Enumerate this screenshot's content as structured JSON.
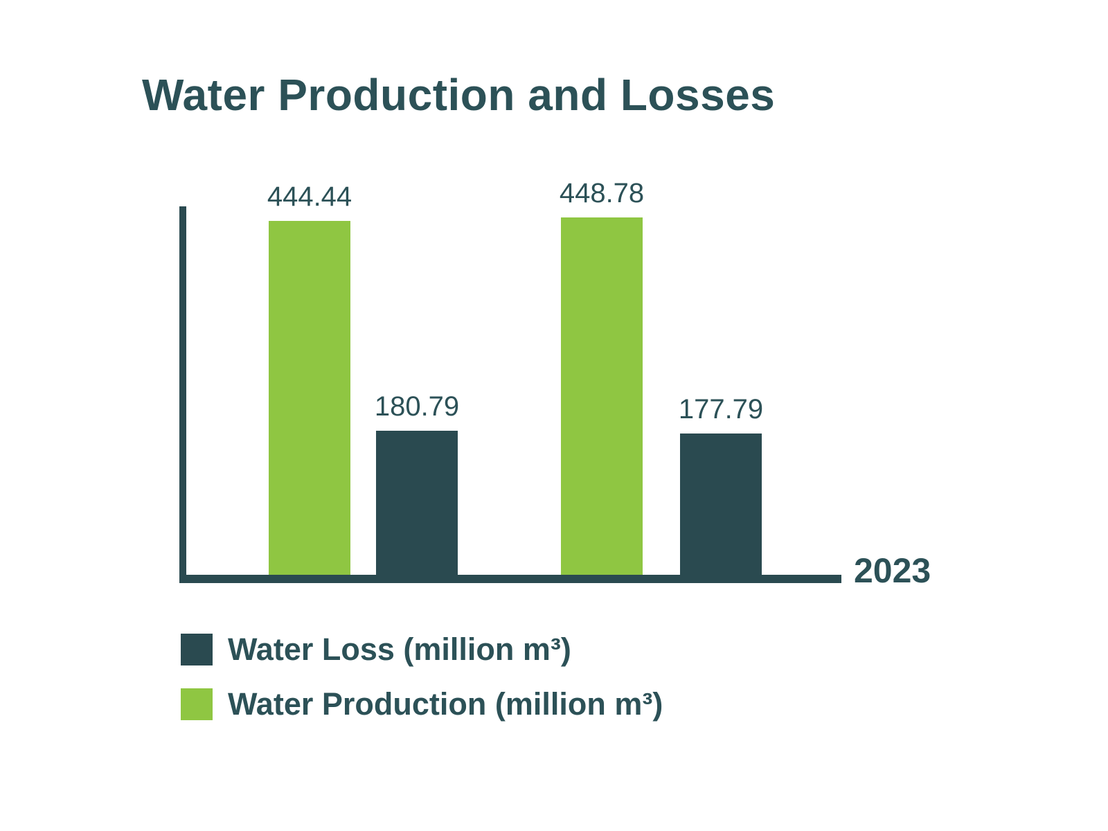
{
  "title": "Water Production and Losses",
  "chart_data": {
    "type": "bar",
    "title": "Water Production and Losses",
    "x_axis_label": "2023",
    "groups": 2,
    "series": [
      {
        "name": "Water Production (million m³)",
        "color": "#8fc642",
        "values": [
          444.44,
          448.78
        ]
      },
      {
        "name": "Water Loss (million m³)",
        "color": "#2a4a50",
        "values": [
          180.79,
          177.79
        ]
      }
    ],
    "bar_display_order": [
      "Water Production",
      "Water Loss",
      "Water Production",
      "Water Loss"
    ],
    "value_labels": [
      "444.44",
      "180.79",
      "448.78",
      "177.79"
    ],
    "y_axis": {
      "visible": true,
      "tick_labels": []
    },
    "gridlines": false,
    "legend_position": "bottom-left"
  },
  "legend": {
    "entries": [
      {
        "label": "Water Loss (million m³)",
        "color": "#2a4a50"
      },
      {
        "label": "Water Production (million m³)",
        "color": "#8fc642"
      }
    ]
  },
  "colors": {
    "green": "#8fc642",
    "dark_teal": "#2a4a50",
    "text": "#2c5157",
    "background": "#ffffff"
  }
}
